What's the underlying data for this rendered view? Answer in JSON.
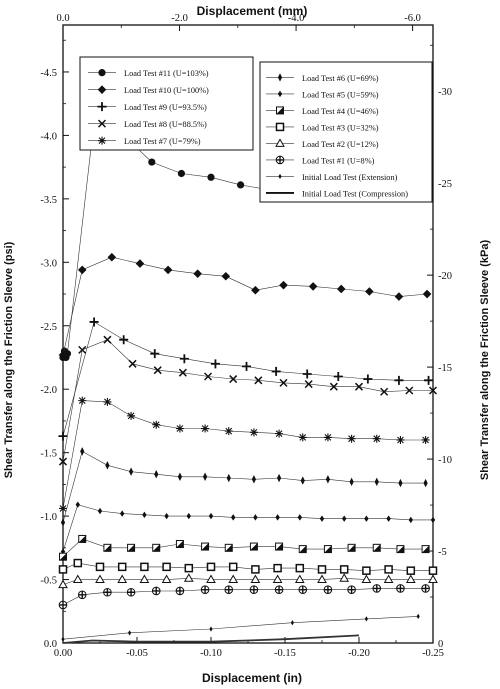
{
  "chart_data": {
    "type": "line",
    "x_bottom": {
      "label": "Displacement (in)",
      "range": [
        0,
        -0.25
      ],
      "ticks": [
        "0.00",
        "-0.05",
        "-0.10",
        "-0.15",
        "-0.20",
        "-0.25"
      ],
      "tick_values": [
        0,
        -0.05,
        -0.1,
        -0.15,
        -0.2,
        -0.25
      ]
    },
    "x_top": {
      "label": "Displacement (mm)",
      "range": [
        0,
        -6.35
      ],
      "ticks": [
        "0.0",
        "-2.0",
        "-4.0",
        "-6.0"
      ],
      "tick_values": [
        0,
        -2,
        -4,
        -6
      ]
    },
    "y_left": {
      "label": "Shear Transfer along the Friction Sleeve (psi)",
      "range": [
        0,
        -4.87
      ],
      "ticks": [
        "0.0",
        "-0.5",
        "-1.0",
        "-1.5",
        "-2.0",
        "-2.5",
        "-3.0",
        "-3.5",
        "-4.0",
        "-4.5"
      ],
      "tick_values": [
        0,
        -0.5,
        -1,
        -1.5,
        -2,
        -2.5,
        -3,
        -3.5,
        -4,
        -4.5
      ]
    },
    "y_right": {
      "label": "Shear Transfer along the Friction Sleeve (kPa)",
      "range": [
        0,
        -33.6
      ],
      "ticks": [
        "0",
        "-5",
        "-10",
        "-15",
        "-20",
        "-25",
        "-30"
      ],
      "tick_values": [
        0,
        -5,
        -10,
        -15,
        -20,
        -25,
        -30
      ]
    },
    "legend_left": [
      "Load Test #11 (U=103%)",
      "Load Test #10 (U=100%)",
      "Load Test #9 (U=93.5%)",
      "Load Test #8 (U=88.5%)",
      "Load Test #7 (U=79%)"
    ],
    "legend_right": [
      "Load Test #6 (U=69%)",
      "Load Test #5 (U=59%)",
      "Load Test #4 (U=46%)",
      "Load Test #3 (U=32%)",
      "Load Test #2 (U=12%)",
      "Load Test #1 (U=8%)",
      "Initial Load Test (Extension)",
      "Initial Load Test (Compression)"
    ],
    "series": [
      {
        "name": "Load Test #11 (U=103%)",
        "marker": "circle",
        "x": [
          0,
          -0.001,
          -0.002,
          -0.003,
          -0.02,
          -0.04,
          -0.06,
          -0.08,
          -0.1,
          -0.12,
          -0.14,
          -0.16,
          -0.18,
          -0.2
        ],
        "y": [
          -2.25,
          -2.3,
          -2.25,
          -2.28,
          -4.01,
          -4.01,
          -3.79,
          -3.7,
          -3.67,
          -3.61,
          -3.57,
          -3.54,
          -3.5,
          -3.5
        ]
      },
      {
        "name": "Load Test #10 (U=100%)",
        "marker": "diamond",
        "x": [
          0,
          -0.013,
          -0.033,
          -0.052,
          -0.071,
          -0.091,
          -0.11,
          -0.13,
          -0.149,
          -0.169,
          -0.188,
          -0.207,
          -0.227,
          -0.246
        ],
        "y": [
          -2.27,
          -2.94,
          -3.04,
          -2.99,
          -2.94,
          -2.91,
          -2.89,
          -2.78,
          -2.82,
          -2.81,
          -2.79,
          -2.77,
          -2.73,
          -2.75
        ]
      },
      {
        "name": "Load Test #9 (U=93.5%)",
        "marker": "plus",
        "x": [
          0,
          -0.021,
          -0.041,
          -0.062,
          -0.082,
          -0.103,
          -0.124,
          -0.144,
          -0.165,
          -0.186,
          -0.206,
          -0.227,
          -0.247
        ],
        "y": [
          -1.63,
          -2.53,
          -2.39,
          -2.28,
          -2.24,
          -2.2,
          -2.18,
          -2.14,
          -2.12,
          -2.1,
          -2.08,
          -2.07,
          -2.07
        ]
      },
      {
        "name": "Load Test #8 (U=88.5%)",
        "marker": "x",
        "x": [
          0,
          -0.013,
          -0.03,
          -0.047,
          -0.064,
          -0.081,
          -0.098,
          -0.115,
          -0.132,
          -0.149,
          -0.166,
          -0.183,
          -0.2,
          -0.217,
          -0.234,
          -0.25
        ],
        "y": [
          -1.43,
          -2.31,
          -2.39,
          -2.2,
          -2.15,
          -2.13,
          -2.1,
          -2.08,
          -2.07,
          -2.05,
          -2.04,
          -2.02,
          -2.02,
          -1.98,
          -1.99,
          -1.99
        ]
      },
      {
        "name": "Load Test #7 (U=79%)",
        "marker": "asterisk",
        "x": [
          0,
          -0.013,
          -0.03,
          -0.046,
          -0.063,
          -0.079,
          -0.096,
          -0.112,
          -0.129,
          -0.146,
          -0.162,
          -0.179,
          -0.195,
          -0.212,
          -0.228,
          -0.245
        ],
        "y": [
          -1.06,
          -1.91,
          -1.9,
          -1.79,
          -1.72,
          -1.69,
          -1.69,
          -1.67,
          -1.66,
          -1.65,
          -1.62,
          -1.62,
          -1.61,
          -1.61,
          -1.6,
          -1.6
        ]
      },
      {
        "name": "Load Test #6 (U=69%)",
        "marker": "thin-diamond",
        "x": [
          0,
          -0.013,
          -0.03,
          -0.046,
          -0.063,
          -0.079,
          -0.096,
          -0.112,
          -0.129,
          -0.146,
          -0.162,
          -0.179,
          -0.195,
          -0.212,
          -0.228,
          -0.245
        ],
        "y": [
          -0.95,
          -1.51,
          -1.4,
          -1.35,
          -1.33,
          -1.31,
          -1.31,
          -1.3,
          -1.29,
          -1.3,
          -1.28,
          -1.29,
          -1.27,
          -1.27,
          -1.26,
          -1.26
        ]
      },
      {
        "name": "Load Test #5 (U=59%)",
        "marker": "small-diamond",
        "x": [
          0,
          -0.01,
          -0.025,
          -0.04,
          -0.055,
          -0.07,
          -0.085,
          -0.1,
          -0.115,
          -0.13,
          -0.145,
          -0.16,
          -0.175,
          -0.19,
          -0.205,
          -0.22,
          -0.235,
          -0.25
        ],
        "y": [
          -0.72,
          -1.09,
          -1.04,
          -1.02,
          -1.01,
          -1.0,
          -1.0,
          -1.0,
          -0.99,
          -0.99,
          -0.99,
          -0.99,
          -0.98,
          -0.98,
          -0.98,
          -0.98,
          -0.97,
          -0.97
        ]
      },
      {
        "name": "Load Test #4 (U=46%)",
        "marker": "half-square",
        "x": [
          0,
          -0.013,
          -0.03,
          -0.046,
          -0.063,
          -0.079,
          -0.096,
          -0.112,
          -0.129,
          -0.146,
          -0.162,
          -0.179,
          -0.195,
          -0.212,
          -0.228,
          -0.245
        ],
        "y": [
          -0.68,
          -0.82,
          -0.75,
          -0.75,
          -0.75,
          -0.78,
          -0.76,
          -0.75,
          -0.76,
          -0.76,
          -0.74,
          -0.74,
          -0.75,
          -0.75,
          -0.74,
          -0.74
        ]
      },
      {
        "name": "Load Test #3 (U=32%)",
        "marker": "square",
        "x": [
          0,
          -0.01,
          -0.025,
          -0.04,
          -0.055,
          -0.07,
          -0.085,
          -0.1,
          -0.115,
          -0.13,
          -0.145,
          -0.16,
          -0.175,
          -0.19,
          -0.205,
          -0.22,
          -0.235,
          -0.25
        ],
        "y": [
          -0.58,
          -0.63,
          -0.6,
          -0.6,
          -0.6,
          -0.6,
          -0.59,
          -0.6,
          -0.6,
          -0.58,
          -0.59,
          -0.59,
          -0.58,
          -0.58,
          -0.57,
          -0.58,
          -0.57,
          -0.57
        ]
      },
      {
        "name": "Load Test #2 (U=12%)",
        "marker": "triangle",
        "x": [
          0,
          -0.01,
          -0.025,
          -0.04,
          -0.055,
          -0.07,
          -0.085,
          -0.1,
          -0.115,
          -0.13,
          -0.145,
          -0.16,
          -0.175,
          -0.19,
          -0.205,
          -0.22,
          -0.235,
          -0.25
        ],
        "y": [
          -0.46,
          -0.5,
          -0.5,
          -0.5,
          -0.5,
          -0.5,
          -0.51,
          -0.5,
          -0.5,
          -0.5,
          -0.5,
          -0.5,
          -0.5,
          -0.51,
          -0.5,
          -0.5,
          -0.5,
          -0.5
        ]
      },
      {
        "name": "Load Test #1 (U=8%)",
        "marker": "circle-plus",
        "x": [
          0,
          -0.013,
          -0.03,
          -0.046,
          -0.063,
          -0.079,
          -0.096,
          -0.112,
          -0.129,
          -0.146,
          -0.162,
          -0.179,
          -0.195,
          -0.212,
          -0.228,
          -0.245
        ],
        "y": [
          -0.3,
          -0.38,
          -0.4,
          -0.4,
          -0.41,
          -0.41,
          -0.42,
          -0.42,
          -0.42,
          -0.42,
          -0.42,
          -0.42,
          -0.42,
          -0.43,
          -0.43,
          -0.43
        ]
      },
      {
        "name": "Initial Load Test (Extension)",
        "marker": "tiny-diamond",
        "x": [
          0,
          -0.045,
          -0.1,
          -0.155,
          -0.205,
          -0.24
        ],
        "y": [
          -0.03,
          -0.08,
          -0.11,
          -0.16,
          -0.19,
          -0.21
        ]
      },
      {
        "name": "Initial Load Test (Compression)",
        "marker": "none",
        "x": [
          0,
          -0.02,
          -0.05,
          -0.1,
          -0.15,
          -0.2
        ],
        "y": [
          0,
          -0.02,
          -0.01,
          -0.01,
          -0.03,
          -0.06
        ]
      }
    ]
  }
}
